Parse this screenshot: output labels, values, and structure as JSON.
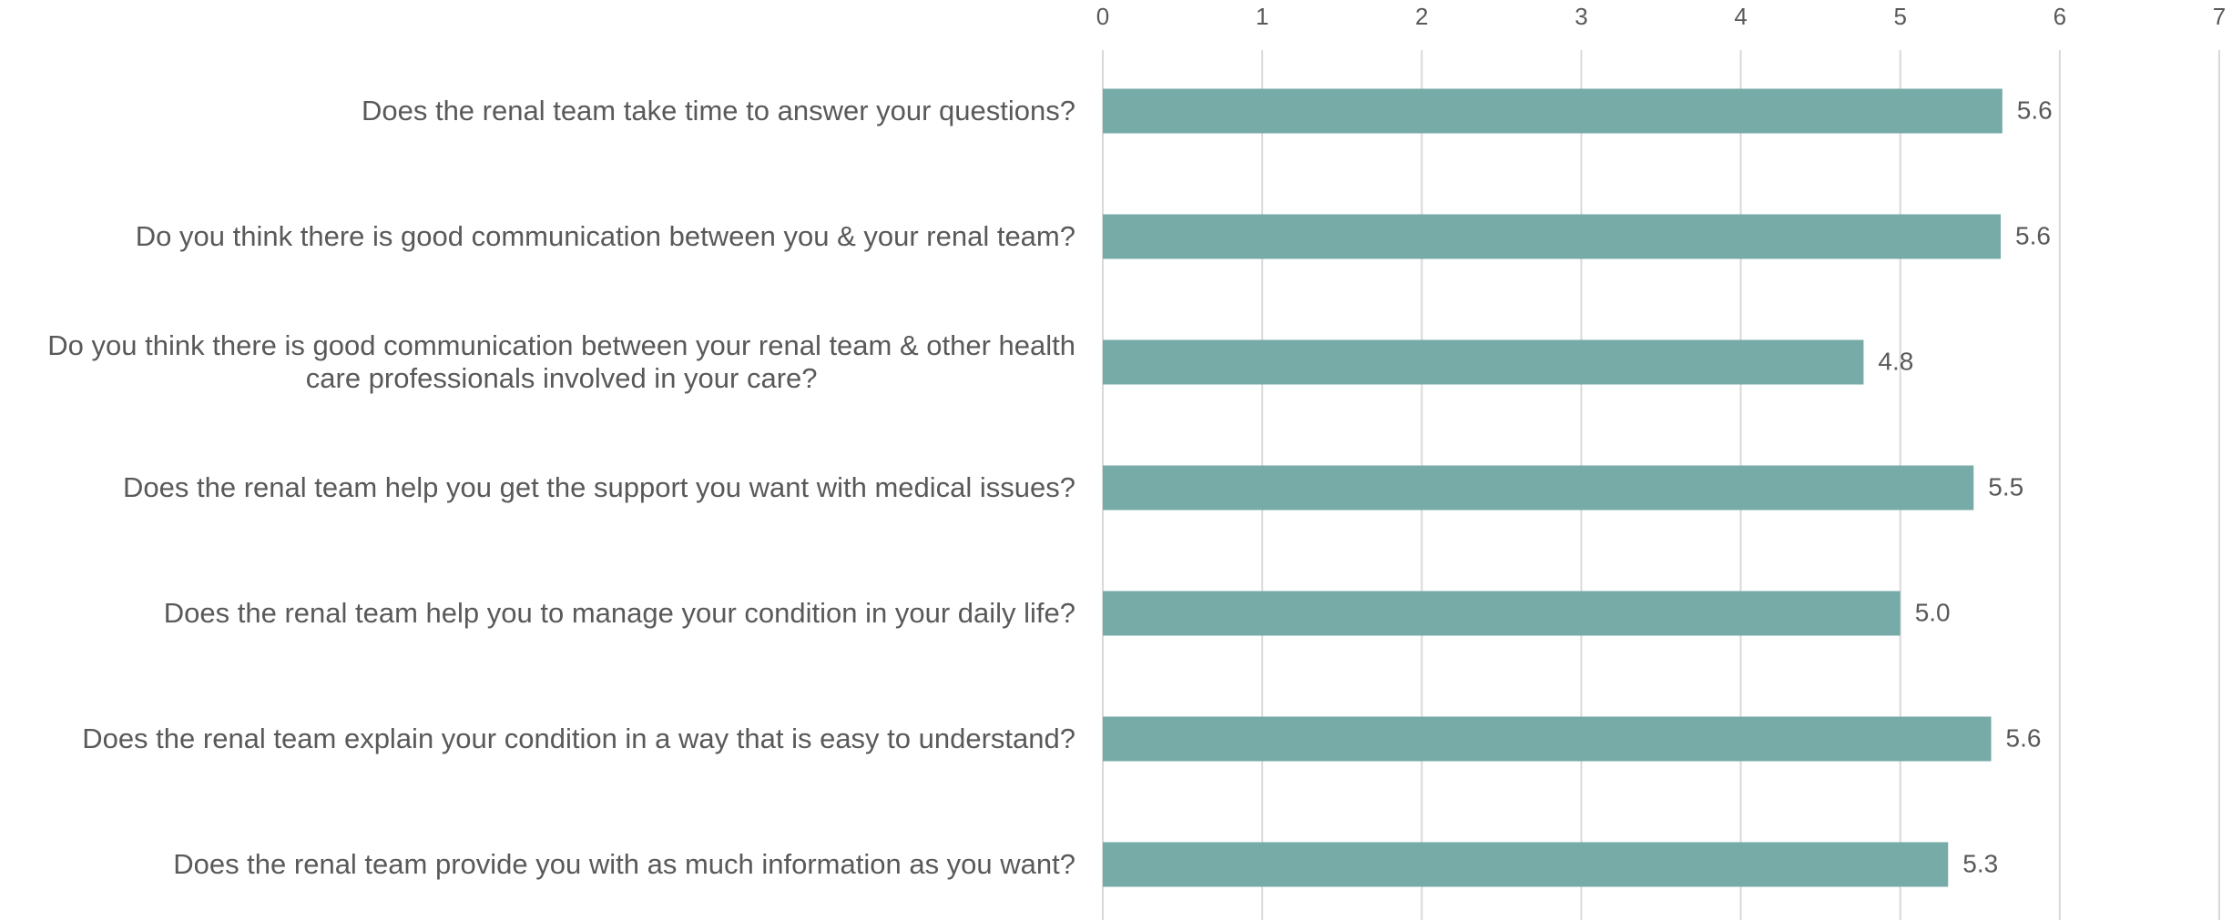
{
  "chart_data": {
    "type": "bar",
    "orientation": "horizontal",
    "categories": [
      "Does the renal team take time to answer your questions?",
      "Do you think there is good communication between you & your renal team?",
      "Do you think there is good communication between your renal team & other health\ncare professionals involved in your care?",
      "Does the renal team help you get the support you want with medical issues?",
      "Does the renal team help you to manage your condition in your daily life?",
      "Does the renal team explain your condition in a way that is easy to understand?",
      "Does the renal team provide you with as much information as you want?"
    ],
    "values": [
      5.64,
      5.63,
      4.77,
      5.46,
      5.0,
      5.57,
      5.3
    ],
    "value_labels": [
      "5.6",
      "5.6",
      "4.8",
      "5.5",
      "5.0",
      "5.6",
      "5.3"
    ],
    "color": "#76aba8",
    "xlim": [
      0,
      7
    ],
    "xticks": [
      0,
      1,
      2,
      3,
      4,
      5,
      6,
      7
    ],
    "grid": true
  }
}
